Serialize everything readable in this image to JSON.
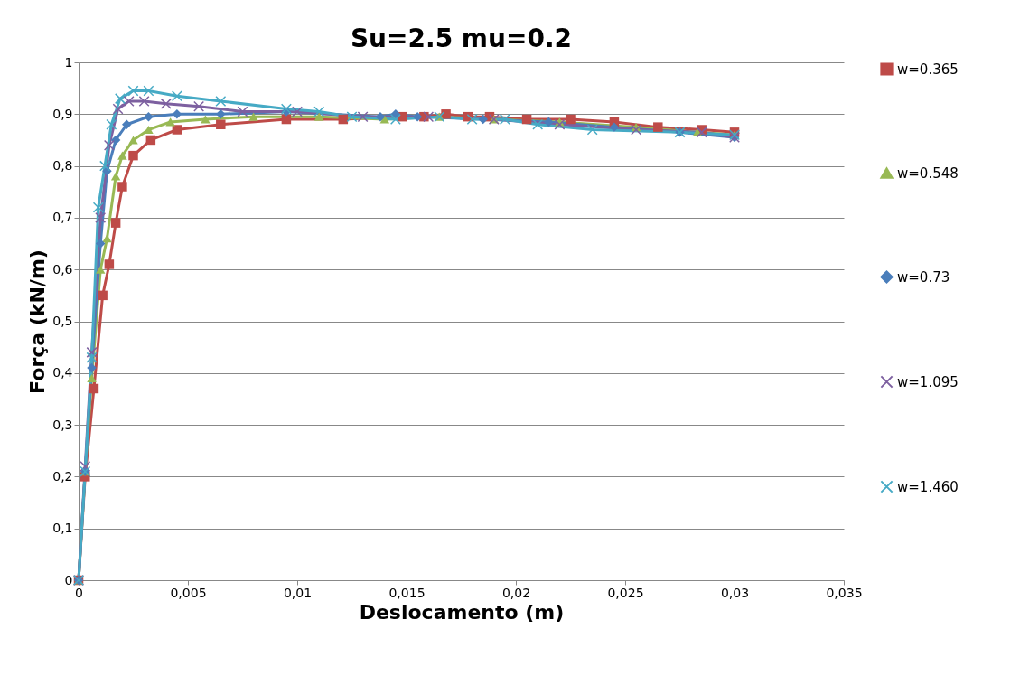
{
  "chart_data": {
    "type": "line",
    "title": "Su=2.5     mu=0.2",
    "xlabel": "Deslocamento (m)",
    "ylabel": "Força (kN/m)",
    "xlim": [
      0,
      0.035
    ],
    "ylim": [
      0,
      1
    ],
    "xticks": [
      0,
      {
        "value": 0.005,
        "label": "0,005"
      },
      {
        "value": 0.01,
        "label": "0,01"
      },
      {
        "value": 0.015,
        "label": "0,015"
      },
      {
        "value": 0.02,
        "label": "0,02"
      },
      {
        "value": 0.025,
        "label": "0,025"
      },
      {
        "value": 0.03,
        "label": "0,03"
      },
      {
        "value": 0.035,
        "label": "0,035"
      }
    ],
    "yticks": [
      0,
      {
        "value": 0.1,
        "label": "0,1"
      },
      {
        "value": 0.2,
        "label": "0,2"
      },
      {
        "value": 0.3,
        "label": "0,3"
      },
      {
        "value": 0.4,
        "label": "0,4"
      },
      {
        "value": 0.5,
        "label": "0,5"
      },
      {
        "value": 0.6,
        "label": "0,6"
      },
      {
        "value": 0.7,
        "label": "0,7"
      },
      {
        "value": 0.8,
        "label": "0,8"
      },
      {
        "value": 0.9,
        "label": "0,9"
      },
      1
    ],
    "grid": "y",
    "legend": "right",
    "line_style": "solid",
    "series": [
      {
        "name": "w=0.365",
        "color": "#be4b48",
        "marker": "square",
        "x": [
          0,
          0.0003,
          0.0007,
          0.0011,
          0.0014,
          0.0017,
          0.002,
          0.0025,
          0.0033,
          0.0045,
          0.0065,
          0.0095,
          0.0121,
          0.0148,
          0.0158,
          0.0168,
          0.0178,
          0.0188,
          0.0205,
          0.0225,
          0.0245,
          0.0265,
          0.0285,
          0.03
        ],
        "values": [
          0,
          0.2,
          0.37,
          0.55,
          0.61,
          0.69,
          0.76,
          0.82,
          0.85,
          0.87,
          0.88,
          0.89,
          0.89,
          0.895,
          0.895,
          0.9,
          0.895,
          0.895,
          0.89,
          0.89,
          0.885,
          0.875,
          0.87,
          0.865
        ]
      },
      {
        "name": "w=0.548",
        "color": "#98b954",
        "marker": "triangle",
        "x": [
          0,
          0.0003,
          0.0006,
          0.001,
          0.0013,
          0.0017,
          0.002,
          0.0025,
          0.0032,
          0.0042,
          0.0058,
          0.008,
          0.011,
          0.014,
          0.0165,
          0.019,
          0.022,
          0.0255,
          0.0283,
          0.03
        ],
        "values": [
          0,
          0.21,
          0.39,
          0.6,
          0.66,
          0.78,
          0.82,
          0.85,
          0.87,
          0.885,
          0.89,
          0.895,
          0.895,
          0.89,
          0.895,
          0.89,
          0.885,
          0.875,
          0.865,
          0.86
        ]
      },
      {
        "name": "w=0.73",
        "color": "#4a7ebb",
        "marker": "diamond",
        "x": [
          0,
          0.0003,
          0.0006,
          0.001,
          0.0013,
          0.0017,
          0.0022,
          0.0032,
          0.0045,
          0.0065,
          0.0095,
          0.0138,
          0.0145,
          0.0155,
          0.0185,
          0.0215,
          0.0245,
          0.0275,
          0.03
        ],
        "values": [
          0,
          0.21,
          0.41,
          0.65,
          0.79,
          0.85,
          0.88,
          0.895,
          0.9,
          0.9,
          0.905,
          0.895,
          0.9,
          0.895,
          0.89,
          0.885,
          0.875,
          0.865,
          0.855
        ]
      },
      {
        "name": "w=1.095",
        "color": "#7d60a0",
        "marker": "cross",
        "x": [
          0,
          0.0003,
          0.0006,
          0.001,
          0.0014,
          0.0018,
          0.0023,
          0.003,
          0.004,
          0.0055,
          0.0075,
          0.01,
          0.013,
          0.016,
          0.019,
          0.022,
          0.0255,
          0.0285,
          0.03
        ],
        "values": [
          0,
          0.22,
          0.44,
          0.7,
          0.84,
          0.91,
          0.925,
          0.925,
          0.92,
          0.915,
          0.905,
          0.905,
          0.895,
          0.895,
          0.89,
          0.88,
          0.87,
          0.865,
          0.855
        ]
      },
      {
        "name": "w=1.460",
        "color": "#46aac5",
        "marker": "cross",
        "x": [
          0,
          0.0003,
          0.0006,
          0.0009,
          0.0012,
          0.0015,
          0.0019,
          0.0025,
          0.0032,
          0.0045,
          0.0065,
          0.0095,
          0.011,
          0.0125,
          0.0145,
          0.0165,
          0.018,
          0.0195,
          0.021,
          0.0235,
          0.0275,
          0.03
        ],
        "values": [
          0,
          0.21,
          0.43,
          0.72,
          0.8,
          0.88,
          0.93,
          0.945,
          0.945,
          0.935,
          0.925,
          0.91,
          0.905,
          0.895,
          0.89,
          0.895,
          0.89,
          0.89,
          0.88,
          0.87,
          0.865,
          0.86
        ]
      }
    ]
  }
}
